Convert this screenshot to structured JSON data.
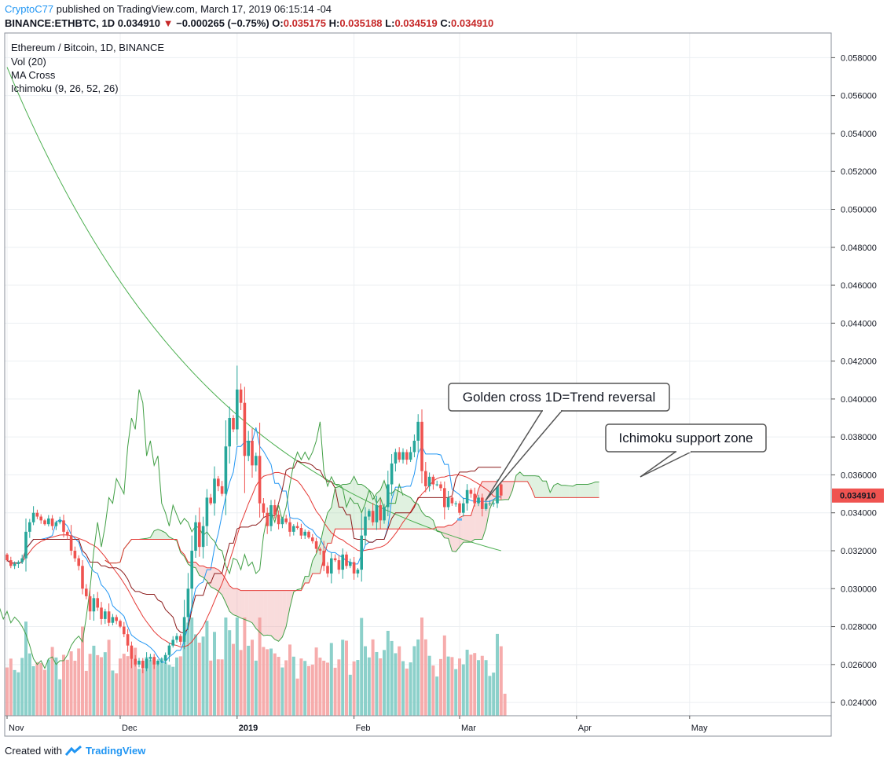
{
  "header": {
    "author": "CryptoC77",
    "published": "published on TradingView.com, March 17, 2019 06:15:14 -04",
    "symbol": "BINANCE:ETHBTC, 1D",
    "last": "0.034910",
    "change": "−0.000265 (−0.75%)",
    "o_label": "O:",
    "o_value": "0.035175",
    "h_label": "H:",
    "h_value": "0.035188",
    "l_label": "L:",
    "l_value": "0.034519",
    "c_label": "C:",
    "c_value": "0.034910"
  },
  "pane": {
    "title": "Ethereum / Bitcoin, 1D, BINANCE",
    "indicators": [
      "Vol (20)",
      "MA Cross",
      "Ichimoku (9, 26, 52, 26)"
    ]
  },
  "footer": {
    "created_with": "Created with",
    "brand": "TradingView"
  },
  "colors": {
    "up": "#26a69a",
    "down": "#ef5350",
    "vol_up": "#80cbc4",
    "vol_down": "#f5a3a3",
    "tenkan": "#2196f3",
    "kijun": "#8b1a1a",
    "span_a": "#43a047",
    "span_b": "#e53935",
    "lagging": "#43a047",
    "ma_fast": "#e53935",
    "ma_slow": "#4caf50",
    "cloud_bull": "#a5d6a7",
    "cloud_bear": "#ef9a9a"
  },
  "chart_data": {
    "type": "candlestick",
    "y_ticks": [
      "0.058000",
      "0.056000",
      "0.054000",
      "0.052000",
      "0.050000",
      "0.048000",
      "0.046000",
      "0.044000",
      "0.042000",
      "0.040000",
      "0.038000",
      "0.036000",
      "0.034000",
      "0.032000",
      "0.030000",
      "0.028000",
      "0.026000",
      "0.024000"
    ],
    "ylim": [
      0.0233,
      0.0593
    ],
    "x_labels": [
      {
        "label": "Nov",
        "day": 0
      },
      {
        "label": "Dec",
        "day": 30
      },
      {
        "label": "2019",
        "day": 61
      },
      {
        "label": "Feb",
        "day": 92
      },
      {
        "label": "Mar",
        "day": 120
      },
      {
        "label": "Apr",
        "day": 151
      },
      {
        "label": "May",
        "day": 181
      }
    ],
    "last_price": "0.034910",
    "candles_close": [
      0.0315,
      0.0312,
      0.0313,
      0.0314,
      0.0316,
      0.033,
      0.0335,
      0.034,
      0.0338,
      0.0336,
      0.0334,
      0.0337,
      0.0333,
      0.0335,
      0.0336,
      0.033,
      0.0328,
      0.032,
      0.0316,
      0.0312,
      0.03,
      0.0296,
      0.0288,
      0.0295,
      0.029,
      0.0284,
      0.0288,
      0.0282,
      0.0285,
      0.0283,
      0.028,
      0.0276,
      0.027,
      0.0263,
      0.026,
      0.0262,
      0.0258,
      0.0263,
      0.0264,
      0.026,
      0.0262,
      0.0262,
      0.0265,
      0.027,
      0.0273,
      0.0275,
      0.0272,
      0.0285,
      0.03,
      0.032,
      0.0335,
      0.0322,
      0.0333,
      0.0348,
      0.0345,
      0.0358,
      0.0354,
      0.035,
      0.0375,
      0.039,
      0.0384,
      0.0405,
      0.0398,
      0.037,
      0.0378,
      0.0365,
      0.037,
      0.0345,
      0.034,
      0.0333,
      0.0344,
      0.0339,
      0.0334,
      0.0337,
      0.0335,
      0.033,
      0.0333,
      0.0332,
      0.0328,
      0.033,
      0.0327,
      0.0325,
      0.0321,
      0.032,
      0.0312,
      0.0308,
      0.0316,
      0.0315,
      0.031,
      0.0318,
      0.0312,
      0.0314,
      0.0308,
      0.031,
      0.0328,
      0.0338,
      0.0341,
      0.0335,
      0.0344,
      0.0336,
      0.0343,
      0.0355,
      0.0366,
      0.0372,
      0.0368,
      0.0372,
      0.0368,
      0.0372,
      0.0378,
      0.0388,
      0.0362,
      0.0354,
      0.0359,
      0.0355,
      0.0355,
      0.0353,
      0.0343,
      0.0348,
      0.0345,
      0.0345,
      0.034,
      0.0345,
      0.0352,
      0.035,
      0.0345,
      0.0348,
      0.0342,
      0.0345,
      0.0345,
      0.0345,
      0.0355,
      0.03491
    ],
    "ma_fast_last": 0.034,
    "ma_slow_last": 0.0328,
    "golden_cross_day": 120,
    "volume_unit": "relative",
    "annotations": [
      {
        "text": "Golden cross 1D=Trend reversal"
      },
      {
        "text": "Ichimoku support zone"
      }
    ]
  }
}
